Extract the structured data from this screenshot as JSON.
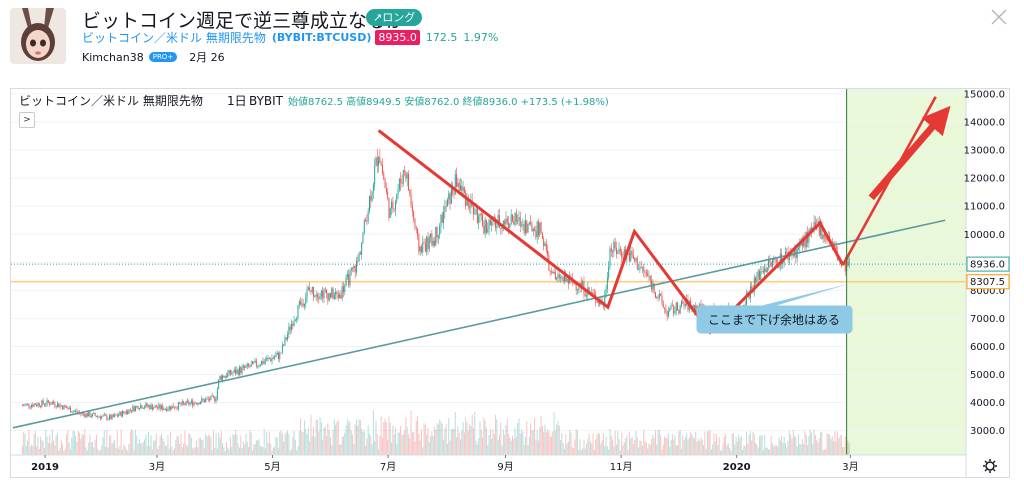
{
  "idea": {
    "title": "ビットコイン週足で逆三尊成立なるか",
    "badge": "↗ロング",
    "symbol_name": "ビットコイン／米ドル 無期限先物",
    "symbol_code": "(BYBIT:BTCUSD)",
    "price": "8935.0",
    "change": "172.5",
    "change_pct": "1.97%",
    "author": "Kimchan38",
    "pro_badge": "PRO+",
    "date": "2月 26"
  },
  "chart_data": {
    "type": "candlestick",
    "legend": {
      "symbol": "ビットコイン／米ドル 無期限先物",
      "interval": "1日",
      "exchange": "BYBIT",
      "ohlc_text": "始値8762.5 高値8949.5 安値8762.0 終値8936.0 +173.5 (+1.98%)"
    },
    "x_ticks": [
      "2019",
      "3月",
      "5月",
      "7月",
      "9月",
      "11月",
      "2020",
      "3月"
    ],
    "y_ticks": [
      "3000.0",
      "4000.0",
      "5000.0",
      "6000.0",
      "7000.0",
      "8000.0",
      "9000.0",
      "10000.0",
      "11000.0",
      "12000.0",
      "13000.0",
      "14000.0",
      "15000.0"
    ],
    "ylim": [
      2100,
      15300
    ],
    "price_labels": [
      {
        "value": 8936.0,
        "text": "8936.0",
        "color": "#26a69a"
      },
      {
        "value": 8307.5,
        "text": "8307.5",
        "color": "#ff9800"
      }
    ],
    "close_series": [
      [
        "2018-12-20",
        3900
      ],
      [
        "2019-01-05",
        4000
      ],
      [
        "2019-01-20",
        3600
      ],
      [
        "2019-02-05",
        3450
      ],
      [
        "2019-02-20",
        3900
      ],
      [
        "2019-03-05",
        3800
      ],
      [
        "2019-03-20",
        4000
      ],
      [
        "2019-04-01",
        4150
      ],
      [
        "2019-04-03",
        4900
      ],
      [
        "2019-04-20",
        5300
      ],
      [
        "2019-05-05",
        5700
      ],
      [
        "2019-05-12",
        7000
      ],
      [
        "2019-05-20",
        8000
      ],
      [
        "2019-06-05",
        7800
      ],
      [
        "2019-06-15",
        9000
      ],
      [
        "2019-06-26",
        13000
      ],
      [
        "2019-07-02",
        10700
      ],
      [
        "2019-07-10",
        12400
      ],
      [
        "2019-07-17",
        9500
      ],
      [
        "2019-07-25",
        9800
      ],
      [
        "2019-08-06",
        11900
      ],
      [
        "2019-08-20",
        10300
      ],
      [
        "2019-09-05",
        10500
      ],
      [
        "2019-09-20",
        10100
      ],
      [
        "2019-09-25",
        8500
      ],
      [
        "2019-10-10",
        8200
      ],
      [
        "2019-10-23",
        7500
      ],
      [
        "2019-10-26",
        9500
      ],
      [
        "2019-11-05",
        9300
      ],
      [
        "2019-11-15",
        8500
      ],
      [
        "2019-11-25",
        7200
      ],
      [
        "2019-12-05",
        7500
      ],
      [
        "2019-12-18",
        7200
      ],
      [
        "2020-01-01",
        7200
      ],
      [
        "2020-01-15",
        8800
      ],
      [
        "2020-02-01",
        9400
      ],
      [
        "2020-02-13",
        10300
      ],
      [
        "2020-02-20",
        9700
      ],
      [
        "2020-02-26",
        8800
      ],
      [
        "2020-03-01",
        8936
      ]
    ],
    "volume_note": "volume histogram at chart bottom",
    "drawings": [
      {
        "type": "trendline",
        "color": "#5b9aa0",
        "points": [
          [
            "2018-12-15",
            3100
          ],
          [
            "2020-04-20",
            10500
          ]
        ]
      },
      {
        "type": "zigzag",
        "color": "#e53935",
        "points": [
          [
            "2019-06-26",
            13700
          ],
          [
            "2019-10-25",
            7400
          ],
          [
            "2019-11-08",
            10100
          ],
          [
            "2019-12-18",
            6500
          ],
          [
            "2020-02-14",
            10400
          ],
          [
            "2020-02-26",
            8900
          ]
        ]
      },
      {
        "type": "line",
        "color": "#e53935",
        "points": [
          [
            "2020-02-26",
            8900
          ],
          [
            "2020-04-15",
            14900
          ]
        ]
      },
      {
        "type": "arrow",
        "color": "#e53935",
        "points": [
          [
            "2020-03-12",
            11300
          ],
          [
            "2020-04-18",
            14200
          ]
        ]
      },
      {
        "type": "callout",
        "text": "ここまで下げ余地はある",
        "target": [
          "2020-03-01",
          8250
        ]
      },
      {
        "type": "vertical_line",
        "color": "#2e7d32",
        "date": "2020-02-28"
      },
      {
        "type": "projection_zone",
        "color": "#e8f8d8",
        "from": "2020-02-28"
      }
    ],
    "horizontal_lines": [
      {
        "value": 8936.0,
        "style": "dotted",
        "color": "#26a69a"
      },
      {
        "value": 8307.5,
        "style": "solid",
        "color": "#ffcc80"
      }
    ]
  },
  "icons": {
    "close": "close-icon",
    "settings": "gear-icon",
    "collapse": "chevron-right-icon"
  }
}
